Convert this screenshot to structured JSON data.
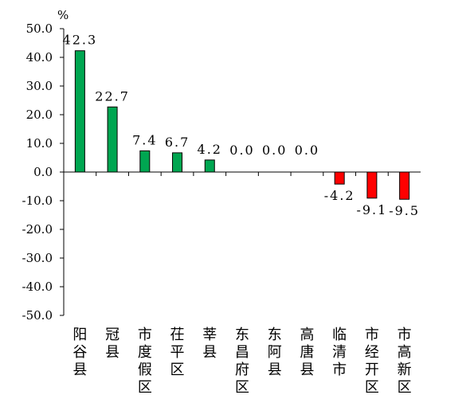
{
  "chart_data": {
    "type": "bar",
    "unit": "%",
    "categories": [
      "阳谷县",
      "冠县",
      "市度假区",
      "茌平区",
      "莘县",
      "东昌府区",
      "东阿县",
      "高唐县",
      "临清市",
      "市经开区",
      "市高新区"
    ],
    "values": [
      42.3,
      22.7,
      7.4,
      6.7,
      4.2,
      0.0,
      0.0,
      0.0,
      -4.2,
      -9.1,
      -9.5
    ],
    "data_labels": [
      "42.3",
      "22.7",
      "7.4",
      "6.7",
      "4.2",
      "0.0",
      "0.0",
      "0.0",
      "-4.2",
      "-9.1",
      "-9.5"
    ],
    "yticks": [
      "50.0",
      "40.0",
      "30.0",
      "20.0",
      "10.0",
      "0.0",
      "-10.0",
      "-20.0",
      "-30.0",
      "-40.0",
      "-50.0"
    ],
    "ylim": [
      -50,
      50
    ],
    "grid": false,
    "positive_color": "#00a651",
    "negative_color": "#ff0000",
    "title": "",
    "xlabel": "",
    "ylabel": ""
  }
}
